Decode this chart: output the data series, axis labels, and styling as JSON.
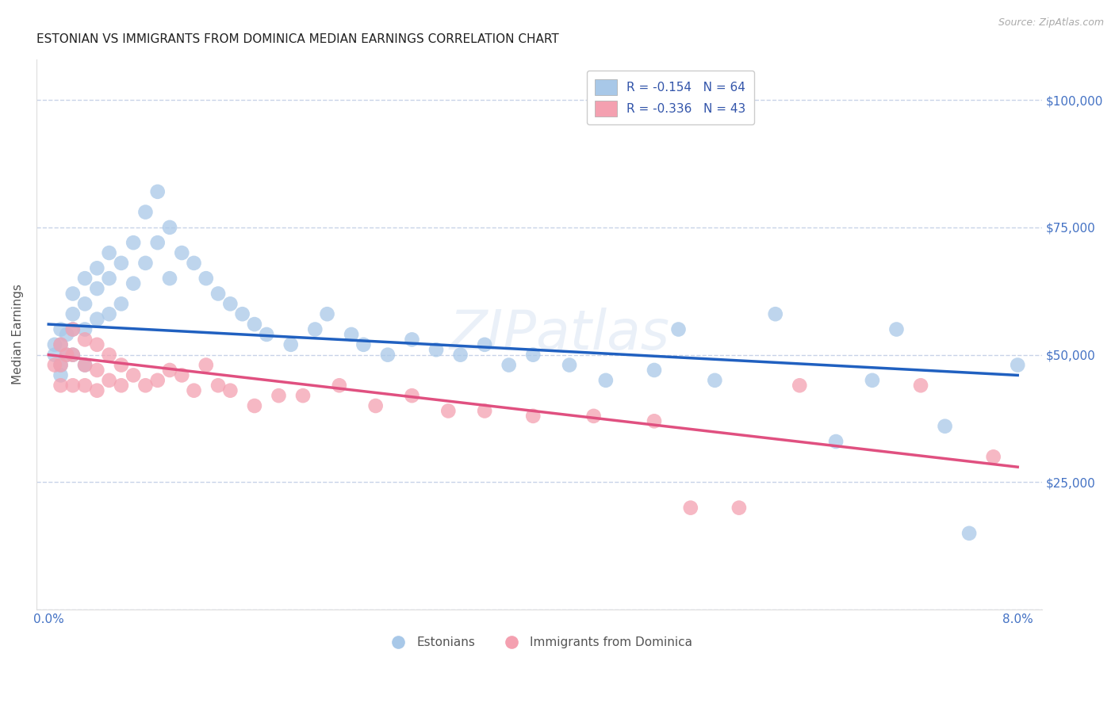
{
  "title": "ESTONIAN VS IMMIGRANTS FROM DOMINICA MEDIAN EARNINGS CORRELATION CHART",
  "source": "Source: ZipAtlas.com",
  "ylabel_label": "Median Earnings",
  "watermark": "ZIPatlas",
  "xlim": [
    -0.001,
    0.082
  ],
  "ylim": [
    0,
    108000
  ],
  "xticks": [
    0.0,
    0.01,
    0.02,
    0.03,
    0.04,
    0.05,
    0.06,
    0.07,
    0.08
  ],
  "yticks": [
    0,
    25000,
    50000,
    75000,
    100000
  ],
  "blue_color": "#a8c8e8",
  "pink_color": "#f4a0b0",
  "blue_line_color": "#2060c0",
  "pink_line_color": "#e05080",
  "axis_label_color": "#4472c4",
  "grid_color": "#c8d3e8",
  "legend_R1": "R = ",
  "legend_R1_val": "-0.154",
  "legend_N1": "  N = ",
  "legend_N1_val": "64",
  "legend_R2": "R = ",
  "legend_R2_val": "-0.336",
  "legend_N2": "  N = ",
  "legend_N2_val": "43",
  "legend_label1": "Estonians",
  "legend_label2": "Immigrants from Dominica",
  "blue_scatter_x": [
    0.0005,
    0.0005,
    0.001,
    0.001,
    0.001,
    0.001,
    0.0015,
    0.0015,
    0.002,
    0.002,
    0.002,
    0.002,
    0.003,
    0.003,
    0.003,
    0.003,
    0.004,
    0.004,
    0.004,
    0.005,
    0.005,
    0.005,
    0.006,
    0.006,
    0.007,
    0.007,
    0.008,
    0.008,
    0.009,
    0.009,
    0.01,
    0.01,
    0.011,
    0.012,
    0.013,
    0.014,
    0.015,
    0.016,
    0.017,
    0.018,
    0.02,
    0.022,
    0.023,
    0.025,
    0.026,
    0.028,
    0.03,
    0.032,
    0.034,
    0.036,
    0.038,
    0.04,
    0.043,
    0.046,
    0.05,
    0.052,
    0.055,
    0.06,
    0.065,
    0.068,
    0.07,
    0.074,
    0.076,
    0.08
  ],
  "blue_scatter_y": [
    52000,
    50000,
    55000,
    52000,
    48000,
    46000,
    54000,
    50000,
    62000,
    58000,
    55000,
    50000,
    65000,
    60000,
    55000,
    48000,
    67000,
    63000,
    57000,
    70000,
    65000,
    58000,
    68000,
    60000,
    72000,
    64000,
    78000,
    68000,
    82000,
    72000,
    75000,
    65000,
    70000,
    68000,
    65000,
    62000,
    60000,
    58000,
    56000,
    54000,
    52000,
    55000,
    58000,
    54000,
    52000,
    50000,
    53000,
    51000,
    50000,
    52000,
    48000,
    50000,
    48000,
    45000,
    47000,
    55000,
    45000,
    58000,
    33000,
    45000,
    55000,
    36000,
    15000,
    48000
  ],
  "pink_scatter_x": [
    0.0005,
    0.001,
    0.001,
    0.001,
    0.0015,
    0.002,
    0.002,
    0.002,
    0.003,
    0.003,
    0.003,
    0.004,
    0.004,
    0.004,
    0.005,
    0.005,
    0.006,
    0.006,
    0.007,
    0.008,
    0.009,
    0.01,
    0.011,
    0.012,
    0.013,
    0.014,
    0.015,
    0.017,
    0.019,
    0.021,
    0.024,
    0.027,
    0.03,
    0.033,
    0.036,
    0.04,
    0.045,
    0.05,
    0.053,
    0.057,
    0.062,
    0.072,
    0.078
  ],
  "pink_scatter_y": [
    48000,
    52000,
    48000,
    44000,
    50000,
    55000,
    50000,
    44000,
    53000,
    48000,
    44000,
    52000,
    47000,
    43000,
    50000,
    45000,
    48000,
    44000,
    46000,
    44000,
    45000,
    47000,
    46000,
    43000,
    48000,
    44000,
    43000,
    40000,
    42000,
    42000,
    44000,
    40000,
    42000,
    39000,
    39000,
    38000,
    38000,
    37000,
    20000,
    20000,
    44000,
    44000,
    30000
  ],
  "blue_trend_x": [
    0.0,
    0.08
  ],
  "blue_trend_y": [
    56000,
    46000
  ],
  "pink_trend_x": [
    0.0,
    0.08
  ],
  "pink_trend_y": [
    50000,
    28000
  ],
  "title_fontsize": 11,
  "axis_tick_fontsize": 11,
  "ylabel_fontsize": 11,
  "source_fontsize": 9,
  "legend_fontsize": 11
}
